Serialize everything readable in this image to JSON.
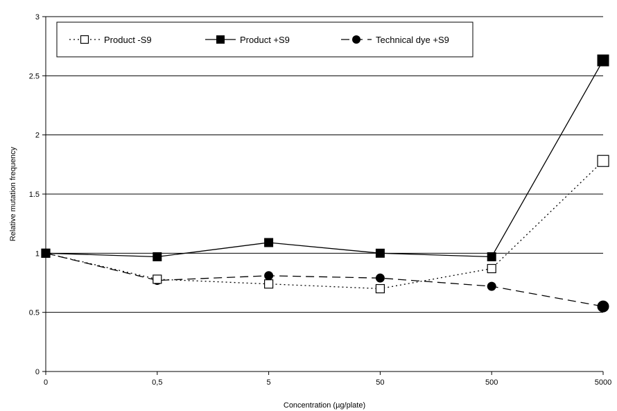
{
  "chart_data": {
    "type": "line",
    "xlabel": "Concentration (µg/plate)",
    "ylabel": "Relative mutation frequency",
    "x_categories": [
      "0",
      "0,5",
      "5",
      "50",
      "500",
      "5000"
    ],
    "y_ticks": [
      "0",
      "0.5",
      "1",
      "1.5",
      "2",
      "2.5",
      "3"
    ],
    "ylim": [
      0,
      3
    ],
    "grid": "horizontal",
    "legend_position": "top",
    "series": [
      {
        "name": "Product -S9",
        "marker": "open-square",
        "line_style": "dotted",
        "color": "#000000",
        "values": [
          1.0,
          0.78,
          0.74,
          0.7,
          0.87,
          1.78
        ]
      },
      {
        "name": "Product +S9",
        "marker": "filled-square",
        "line_style": "solid",
        "color": "#000000",
        "values": [
          1.0,
          0.97,
          1.09,
          1.0,
          0.97,
          2.63
        ]
      },
      {
        "name": "Technical dye +S9",
        "marker": "filled-circle",
        "line_style": "dashed",
        "color": "#000000",
        "values": [
          1.0,
          0.77,
          0.81,
          0.79,
          0.72,
          0.55
        ]
      }
    ]
  }
}
